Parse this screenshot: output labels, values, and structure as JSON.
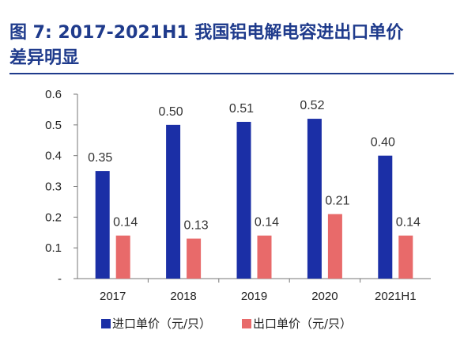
{
  "header": {
    "line1": "图 7:  2017-2021H1 我国铝电解电容进出口单价",
    "line2": "差异明显"
  },
  "chart_data": {
    "type": "bar",
    "categories": [
      "2017",
      "2018",
      "2019",
      "2020",
      "2021H1"
    ],
    "series": [
      {
        "name": "进口单价（元/只）",
        "color": "#1b2fa6",
        "values": [
          0.35,
          0.5,
          0.51,
          0.52,
          0.4
        ],
        "labels": [
          "0.35",
          "0.50",
          "0.51",
          "0.52",
          "0.40"
        ]
      },
      {
        "name": "出口单价（元/只）",
        "color": "#e86a6a",
        "values": [
          0.14,
          0.13,
          0.14,
          0.21,
          0.14
        ],
        "labels": [
          "0.14",
          "0.13",
          "0.14",
          "0.21",
          "0.14"
        ]
      }
    ],
    "ylim": [
      0,
      0.6
    ],
    "yticks": [
      "-",
      "0.1",
      "0.2",
      "0.3",
      "0.4",
      "0.5",
      "0.6"
    ],
    "legend_position": "bottom",
    "grid": false
  }
}
